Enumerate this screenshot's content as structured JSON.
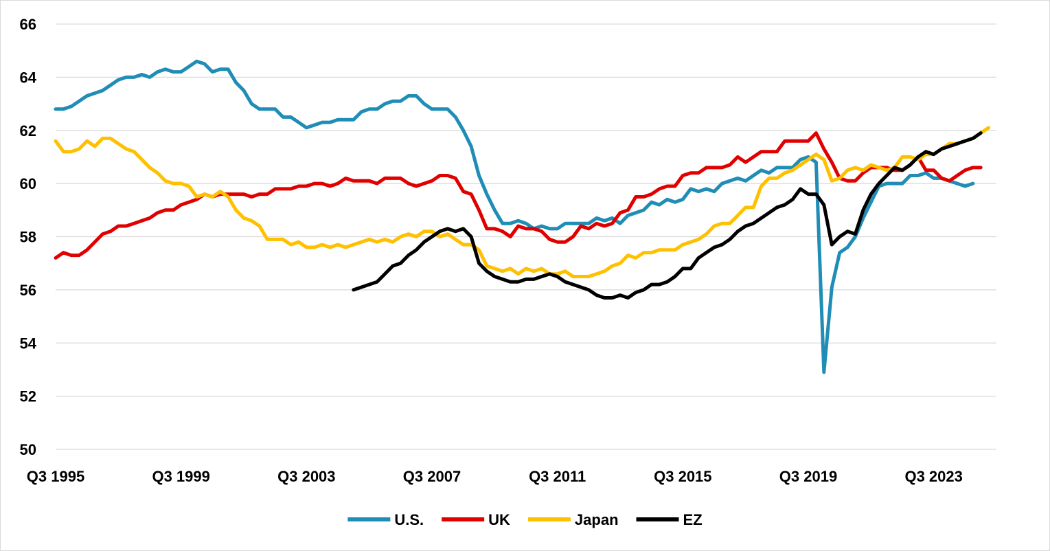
{
  "chart_data": {
    "type": "line",
    "title": "",
    "xlabel": "",
    "ylabel": "",
    "ylim": [
      50,
      66
    ],
    "y_ticks": [
      "50",
      "52",
      "54",
      "56",
      "58",
      "60",
      "62",
      "64",
      "66"
    ],
    "x_tick_labels": [
      "Q3 1995",
      "Q3 1999",
      "Q3 2003",
      "Q3 2007",
      "Q3 2011",
      "Q3 2015",
      "Q3 2019",
      "Q3 2023"
    ],
    "x_start_period": "Q3 1995",
    "x_end_period": "Q3 2025",
    "grid": "horizontal",
    "legend_position": "bottom",
    "series": [
      {
        "name": "U.S.",
        "color": "#1f8db5",
        "start": "Q3 1995",
        "values": [
          62.8,
          62.8,
          62.9,
          63.1,
          63.3,
          63.4,
          63.5,
          63.7,
          63.9,
          64.0,
          64.0,
          64.1,
          64.0,
          64.2,
          64.3,
          64.2,
          64.2,
          64.4,
          64.6,
          64.5,
          64.2,
          64.3,
          64.3,
          63.8,
          63.5,
          63.0,
          62.8,
          62.8,
          62.8,
          62.5,
          62.5,
          62.3,
          62.1,
          62.2,
          62.3,
          62.3,
          62.4,
          62.4,
          62.4,
          62.7,
          62.8,
          62.8,
          63.0,
          63.1,
          63.1,
          63.3,
          63.3,
          63.0,
          62.8,
          62.8,
          62.8,
          62.5,
          62.0,
          61.4,
          60.3,
          59.6,
          59.0,
          58.5,
          58.5,
          58.6,
          58.5,
          58.3,
          58.4,
          58.3,
          58.3,
          58.5,
          58.5,
          58.5,
          58.5,
          58.7,
          58.6,
          58.7,
          58.5,
          58.8,
          58.9,
          59.0,
          59.3,
          59.2,
          59.4,
          59.3,
          59.4,
          59.8,
          59.7,
          59.8,
          59.7,
          60.0,
          60.1,
          60.2,
          60.1,
          60.3,
          60.5,
          60.4,
          60.6,
          60.6,
          60.6,
          60.9,
          61.0,
          60.8,
          52.9,
          56.1,
          57.4,
          57.6,
          58.0,
          58.7,
          59.3,
          59.9,
          60.0,
          60.0,
          60.0,
          60.3,
          60.3,
          60.4,
          60.2,
          60.2,
          60.1,
          60.0,
          59.9,
          60.0
        ]
      },
      {
        "name": "UK",
        "color": "#e00000",
        "start": "Q3 1995",
        "values": [
          57.2,
          57.4,
          57.3,
          57.3,
          57.5,
          57.8,
          58.1,
          58.2,
          58.4,
          58.4,
          58.5,
          58.6,
          58.7,
          58.9,
          59.0,
          59.0,
          59.2,
          59.3,
          59.4,
          59.6,
          59.5,
          59.6,
          59.6,
          59.6,
          59.6,
          59.5,
          59.6,
          59.6,
          59.8,
          59.8,
          59.8,
          59.9,
          59.9,
          60.0,
          60.0,
          59.9,
          60.0,
          60.2,
          60.1,
          60.1,
          60.1,
          60.0,
          60.2,
          60.2,
          60.2,
          60.0,
          59.9,
          60.0,
          60.1,
          60.3,
          60.3,
          60.2,
          59.7,
          59.6,
          59.0,
          58.3,
          58.3,
          58.2,
          58.0,
          58.4,
          58.3,
          58.3,
          58.2,
          57.9,
          57.8,
          57.8,
          58.0,
          58.4,
          58.3,
          58.5,
          58.4,
          58.5,
          58.9,
          59.0,
          59.5,
          59.5,
          59.6,
          59.8,
          59.9,
          59.9,
          60.3,
          60.4,
          60.4,
          60.6,
          60.6,
          60.6,
          60.7,
          61.0,
          60.8,
          61.0,
          61.2,
          61.2,
          61.2,
          61.6,
          61.6,
          61.6,
          61.6,
          61.9,
          61.3,
          60.8,
          60.2,
          60.1,
          60.1,
          60.4,
          60.6,
          60.6,
          60.6,
          60.5,
          60.5,
          60.7,
          61.0,
          60.5,
          60.5,
          60.2,
          60.1,
          60.3,
          60.5,
          60.6,
          60.6
        ]
      },
      {
        "name": "Japan",
        "color": "#ffc000",
        "start": "Q3 1995",
        "values": [
          61.6,
          61.2,
          61.2,
          61.3,
          61.6,
          61.4,
          61.7,
          61.7,
          61.5,
          61.3,
          61.2,
          60.9,
          60.6,
          60.4,
          60.1,
          60.0,
          60.0,
          59.9,
          59.5,
          59.6,
          59.5,
          59.7,
          59.5,
          59.0,
          58.7,
          58.6,
          58.4,
          57.9,
          57.9,
          57.9,
          57.7,
          57.8,
          57.6,
          57.6,
          57.7,
          57.6,
          57.7,
          57.6,
          57.7,
          57.8,
          57.9,
          57.8,
          57.9,
          57.8,
          58.0,
          58.1,
          58.0,
          58.2,
          58.2,
          58.0,
          58.1,
          57.9,
          57.7,
          57.7,
          57.5,
          56.9,
          56.8,
          56.7,
          56.8,
          56.6,
          56.8,
          56.7,
          56.8,
          56.6,
          56.6,
          56.7,
          56.5,
          56.5,
          56.5,
          56.6,
          56.7,
          56.9,
          57.0,
          57.3,
          57.2,
          57.4,
          57.4,
          57.5,
          57.5,
          57.5,
          57.7,
          57.8,
          57.9,
          58.1,
          58.4,
          58.5,
          58.5,
          58.8,
          59.1,
          59.1,
          59.9,
          60.2,
          60.2,
          60.4,
          60.5,
          60.7,
          60.9,
          61.1,
          60.9,
          60.1,
          60.2,
          60.5,
          60.6,
          60.5,
          60.7,
          60.6,
          60.5,
          60.6,
          61.0,
          61.0,
          60.9,
          61.1,
          61.1,
          61.3,
          61.5,
          61.5,
          61.6,
          61.7,
          61.9,
          62.1
        ]
      },
      {
        "name": "EZ",
        "color": "#000000",
        "start": "Q1 2005",
        "values": [
          56.0,
          56.1,
          56.2,
          56.3,
          56.6,
          56.9,
          57.0,
          57.3,
          57.5,
          57.8,
          58.0,
          58.2,
          58.3,
          58.2,
          58.3,
          58.0,
          57.0,
          56.7,
          56.5,
          56.4,
          56.3,
          56.3,
          56.4,
          56.4,
          56.5,
          56.6,
          56.5,
          56.3,
          56.2,
          56.1,
          56.0,
          55.8,
          55.7,
          55.7,
          55.8,
          55.7,
          55.9,
          56.0,
          56.2,
          56.2,
          56.3,
          56.5,
          56.8,
          56.8,
          57.2,
          57.4,
          57.6,
          57.7,
          57.9,
          58.2,
          58.4,
          58.5,
          58.7,
          58.9,
          59.1,
          59.2,
          59.4,
          59.8,
          59.6,
          59.6,
          59.2,
          57.7,
          58.0,
          58.2,
          58.1,
          59.0,
          59.6,
          60.0,
          60.3,
          60.6,
          60.5,
          60.7,
          61.0,
          61.2,
          61.1,
          61.3,
          61.4,
          61.5,
          61.6,
          61.7,
          61.9
        ]
      }
    ]
  }
}
